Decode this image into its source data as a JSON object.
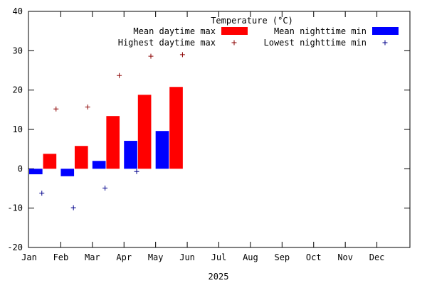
{
  "chart_data": {
    "type": "bar",
    "title": "Temperature (°C)",
    "xlabel": "2025",
    "ylabel": "",
    "ylim": [
      -20,
      40
    ],
    "yticks": [
      "-20",
      "-10",
      "0",
      "10",
      "20",
      "30",
      "40"
    ],
    "categories": [
      "Jan",
      "Feb",
      "Mar",
      "Apr",
      "May",
      "Jun",
      "Jul",
      "Aug",
      "Sep",
      "Oct",
      "Nov",
      "Dec"
    ],
    "grid": false,
    "legend_position": "top-right",
    "series": [
      {
        "name": "Mean daytime max",
        "kind": "bar",
        "color": "#ff0000",
        "values": [
          3.8,
          5.8,
          13.4,
          18.8,
          20.8,
          null,
          null,
          null,
          null,
          null,
          null,
          null
        ]
      },
      {
        "name": "Mean nighttime min",
        "kind": "bar",
        "color": "#0000ff",
        "values": [
          -1.4,
          -1.9,
          2.0,
          7.1,
          9.6,
          null,
          null,
          null,
          null,
          null,
          null,
          null
        ]
      },
      {
        "name": "Highest daytime max",
        "kind": "point",
        "color": "#8b0000",
        "values": [
          15.2,
          15.7,
          23.7,
          28.6,
          29.0,
          null,
          null,
          null,
          null,
          null,
          null,
          null
        ]
      },
      {
        "name": "Lowest nighttime min",
        "kind": "point",
        "color": "#00008b",
        "values": [
          -6.2,
          -9.9,
          -4.9,
          -0.7,
          null,
          null,
          null,
          null,
          null,
          null,
          null,
          null
        ]
      }
    ]
  }
}
